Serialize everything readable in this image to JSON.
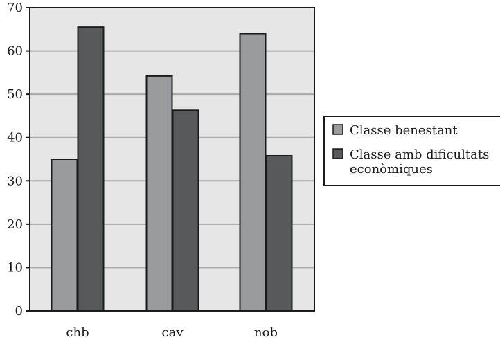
{
  "chart_data": {
    "type": "bar",
    "title": "",
    "xlabel": "",
    "ylabel": "",
    "categories": [
      "chb",
      "cav",
      "nob"
    ],
    "series": [
      {
        "name": "Classe benestant",
        "values": [
          35,
          54.2,
          64
        ]
      },
      {
        "name": "Classe amb dificultats econòmiques",
        "values": [
          65.5,
          46.3,
          35.8
        ]
      }
    ],
    "ylim": [
      0,
      70
    ],
    "yticks": [
      "0",
      "10",
      "20",
      "30",
      "40",
      "50",
      "60",
      "70"
    ],
    "grid": true,
    "legend_position": "right",
    "legend": {
      "series1_label": "Classe benestant",
      "series2_label_line1": "Classe amb dificultats",
      "series2_label_line2": "econòmiques"
    },
    "colors": {
      "series1": "#9a9b9d",
      "series2": "#58595b",
      "plot_background": "#e6e6e6",
      "gridline": "#a9a9a9",
      "axis": "#1a1a1a"
    }
  }
}
